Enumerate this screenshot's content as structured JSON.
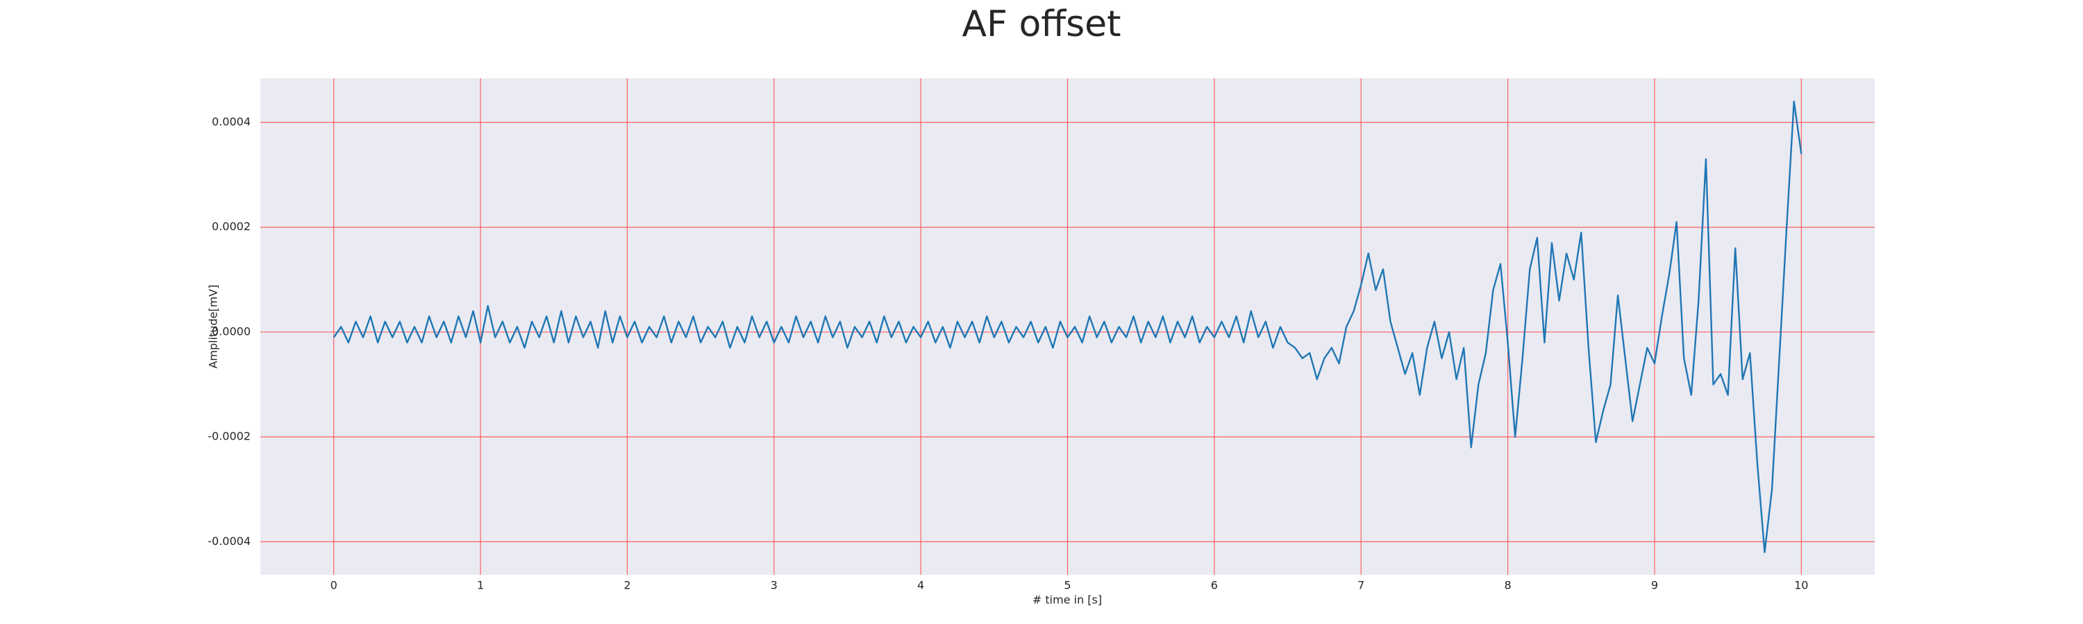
{
  "chart_data": {
    "type": "line",
    "title": "AF offset",
    "xlabel": "# time in [s]",
    "ylabel": "Amplitude[mV]",
    "x": [
      0,
      0.05,
      0.1,
      0.15,
      0.2,
      0.25,
      0.3,
      0.35,
      0.4,
      0.45,
      0.5,
      0.55,
      0.6,
      0.65,
      0.7,
      0.75,
      0.8,
      0.85,
      0.9,
      0.95,
      1,
      1.05,
      1.1,
      1.15,
      1.2,
      1.25,
      1.3,
      1.35,
      1.4,
      1.45,
      1.5,
      1.55,
      1.6,
      1.65,
      1.7,
      1.75,
      1.8,
      1.85,
      1.9,
      1.95,
      2,
      2.05,
      2.1,
      2.15,
      2.2,
      2.25,
      2.3,
      2.35,
      2.4,
      2.45,
      2.5,
      2.55,
      2.6,
      2.65,
      2.7,
      2.75,
      2.8,
      2.85,
      2.9,
      2.95,
      3,
      3.05,
      3.1,
      3.15,
      3.2,
      3.25,
      3.3,
      3.35,
      3.4,
      3.45,
      3.5,
      3.55,
      3.6,
      3.65,
      3.7,
      3.75,
      3.8,
      3.85,
      3.9,
      3.95,
      4,
      4.05,
      4.1,
      4.15,
      4.2,
      4.25,
      4.3,
      4.35,
      4.4,
      4.45,
      4.5,
      4.55,
      4.6,
      4.65,
      4.7,
      4.75,
      4.8,
      4.85,
      4.9,
      4.95,
      5,
      5.05,
      5.1,
      5.15,
      5.2,
      5.25,
      5.3,
      5.35,
      5.4,
      5.45,
      5.5,
      5.55,
      5.6,
      5.65,
      5.7,
      5.75,
      5.8,
      5.85,
      5.9,
      5.95,
      6,
      6.05,
      6.1,
      6.15,
      6.2,
      6.25,
      6.3,
      6.35,
      6.4,
      6.45,
      6.5,
      6.55,
      6.6,
      6.65,
      6.7,
      6.75,
      6.8,
      6.85,
      6.9,
      6.95,
      7,
      7.05,
      7.1,
      7.15,
      7.2,
      7.25,
      7.3,
      7.35,
      7.4,
      7.45,
      7.5,
      7.55,
      7.6,
      7.65,
      7.7,
      7.75,
      7.8,
      7.85,
      7.9,
      7.95,
      8,
      8.05,
      8.1,
      8.15,
      8.2,
      8.25,
      8.3,
      8.35,
      8.4,
      8.45,
      8.5,
      8.55,
      8.6,
      8.65,
      8.7,
      8.75,
      8.8,
      8.85,
      8.9,
      8.95,
      9,
      9.05,
      9.1,
      9.15,
      9.2,
      9.25,
      9.3,
      9.35,
      9.4,
      9.45,
      9.5,
      9.55,
      9.6,
      9.65,
      9.7,
      9.75,
      9.8,
      9.85,
      9.9,
      9.95,
      10
    ],
    "series": [
      {
        "name": "AF offset",
        "color": "#1f77b4",
        "values": [
          -1e-05,
          1e-05,
          -2e-05,
          2e-05,
          -1e-05,
          3e-05,
          -2e-05,
          2e-05,
          -1e-05,
          2e-05,
          -2e-05,
          1e-05,
          -2e-05,
          3e-05,
          -1e-05,
          2e-05,
          -2e-05,
          3e-05,
          -1e-05,
          4e-05,
          -2e-05,
          5e-05,
          -1e-05,
          2e-05,
          -2e-05,
          1e-05,
          -3e-05,
          2e-05,
          -1e-05,
          3e-05,
          -2e-05,
          4e-05,
          -2e-05,
          3e-05,
          -1e-05,
          2e-05,
          -3e-05,
          4e-05,
          -2e-05,
          3e-05,
          -1e-05,
          2e-05,
          -2e-05,
          1e-05,
          -1e-05,
          3e-05,
          -2e-05,
          2e-05,
          -1e-05,
          3e-05,
          -2e-05,
          1e-05,
          -1e-05,
          2e-05,
          -3e-05,
          1e-05,
          -2e-05,
          3e-05,
          -1e-05,
          2e-05,
          -2e-05,
          1e-05,
          -2e-05,
          3e-05,
          -1e-05,
          2e-05,
          -2e-05,
          3e-05,
          -1e-05,
          2e-05,
          -3e-05,
          1e-05,
          -1e-05,
          2e-05,
          -2e-05,
          3e-05,
          -1e-05,
          2e-05,
          -2e-05,
          1e-05,
          -1e-05,
          2e-05,
          -2e-05,
          1e-05,
          -3e-05,
          2e-05,
          -1e-05,
          2e-05,
          -2e-05,
          3e-05,
          -1e-05,
          2e-05,
          -2e-05,
          1e-05,
          -1e-05,
          2e-05,
          -2e-05,
          1e-05,
          -3e-05,
          2e-05,
          -1e-05,
          1e-05,
          -2e-05,
          3e-05,
          -1e-05,
          2e-05,
          -2e-05,
          1e-05,
          -1e-05,
          3e-05,
          -2e-05,
          2e-05,
          -1e-05,
          3e-05,
          -2e-05,
          2e-05,
          -1e-05,
          3e-05,
          -2e-05,
          1e-05,
          -1e-05,
          2e-05,
          -1e-05,
          3e-05,
          -2e-05,
          4e-05,
          -1e-05,
          2e-05,
          -3e-05,
          1e-05,
          -2e-05,
          -3e-05,
          -5e-05,
          -4e-05,
          -9e-05,
          -5e-05,
          -3e-05,
          -6e-05,
          1e-05,
          4e-05,
          9e-05,
          0.00015,
          8e-05,
          0.00012,
          2e-05,
          -3e-05,
          -8e-05,
          -4e-05,
          -0.00012,
          -3e-05,
          2e-05,
          -5e-05,
          0,
          -9e-05,
          -3e-05,
          -0.00022,
          -0.0001,
          -4e-05,
          8e-05,
          0.00013,
          -2e-05,
          -0.0002,
          -5e-05,
          0.00012,
          0.00018,
          -2e-05,
          0.00017,
          6e-05,
          0.00015,
          0.0001,
          0.00019,
          -3e-05,
          -0.00021,
          -0.00015,
          -0.0001,
          7e-05,
          -5e-05,
          -0.00017,
          -0.0001,
          -3e-05,
          -6e-05,
          3e-05,
          0.00011,
          0.00021,
          -5e-05,
          -0.00012,
          6e-05,
          0.00033,
          -0.0001,
          -8e-05,
          -0.00012,
          0.00016,
          -9e-05,
          -4e-05,
          -0.00025,
          -0.00042,
          -0.0003,
          -5e-05,
          0.0002,
          0.00044,
          0.00034
        ]
      }
    ],
    "xlim": [
      -0.5,
      10.5
    ],
    "ylim": [
      -0.000463,
      0.000484
    ],
    "xticks": [
      0,
      1,
      2,
      3,
      4,
      5,
      6,
      7,
      8,
      9,
      10
    ],
    "yticks": [
      {
        "value": -0.0004,
        "label": "-0.0004"
      },
      {
        "value": -0.0002,
        "label": "-0.0002"
      },
      {
        "value": 0,
        "label": "0.0000"
      },
      {
        "value": 0.0002,
        "label": "0.0002"
      },
      {
        "value": 0.0004,
        "label": "0.0004"
      }
    ],
    "grid": true,
    "grid_color": "#ff4040",
    "background": "#eaeaf2"
  }
}
